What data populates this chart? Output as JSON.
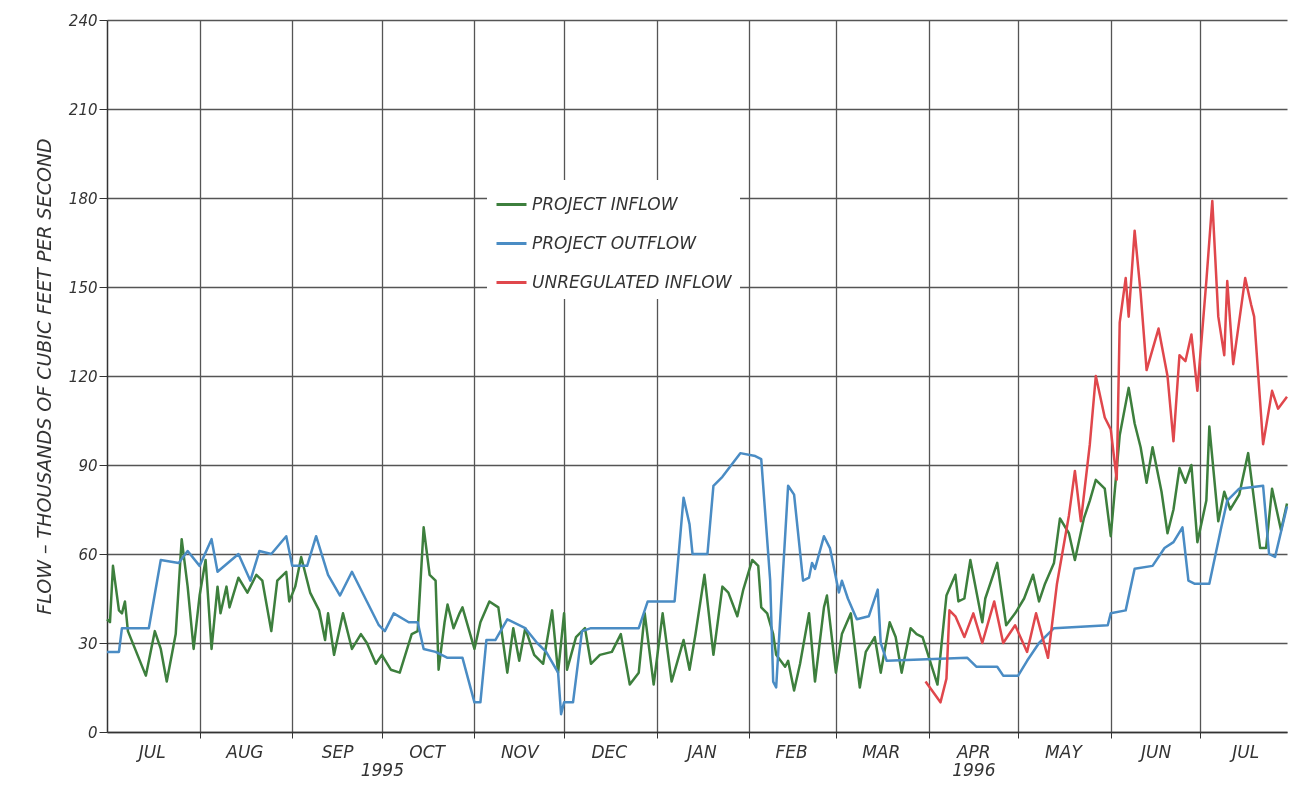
{
  "chart_data": {
    "type": "line",
    "ylabel": "FLOW – THOUSANDS OF CUBIC FEET PER SECOND",
    "xlim": [
      "1995-07-01",
      "1996-07-30"
    ],
    "xticks": [
      {
        "value": "1995-07-16",
        "label": "JUL"
      },
      {
        "value": "1995-08-01",
        "label": null
      },
      {
        "value": "1995-08-16",
        "label": "AUG"
      },
      {
        "value": "1995-09-01",
        "label": null
      },
      {
        "value": "1995-09-16",
        "label": "SEP"
      },
      {
        "value": "1995-10-01",
        "label": null
      },
      {
        "value": "1995-10-16",
        "label": "OCT"
      },
      {
        "value": "1995-11-01",
        "label": null
      },
      {
        "value": "1995-11-16",
        "label": "NOV"
      },
      {
        "value": "1995-12-01",
        "label": null
      },
      {
        "value": "1995-12-16",
        "label": "DEC"
      },
      {
        "value": "1996-01-01",
        "label": null
      },
      {
        "value": "1996-01-16",
        "label": "JAN"
      },
      {
        "value": "1996-02-01",
        "label": null
      },
      {
        "value": "1996-02-15",
        "label": "FEB"
      },
      {
        "value": "1996-03-01",
        "label": null
      },
      {
        "value": "1996-03-16",
        "label": "MAR"
      },
      {
        "value": "1996-04-01",
        "label": null
      },
      {
        "value": "1996-04-16",
        "label": "APR"
      },
      {
        "value": "1996-05-01",
        "label": null
      },
      {
        "value": "1996-05-16",
        "label": "MAY"
      },
      {
        "value": "1996-06-01",
        "label": null
      },
      {
        "value": "1996-06-16",
        "label": "JUN"
      },
      {
        "value": "1996-07-01",
        "label": null
      },
      {
        "value": "1996-07-16",
        "label": "JUL"
      }
    ],
    "x2lim": [
      "1995-07-01",
      "1996-07-30"
    ],
    "x2ticks": [
      {
        "value": "1995-10-01",
        "label": "1995"
      },
      {
        "value": "1996-04-16",
        "label": "1996"
      }
    ],
    "ylim": [
      0,
      240
    ],
    "yticks": [
      0,
      30,
      60,
      90,
      120,
      150,
      180,
      210,
      240
    ],
    "grid": true,
    "legend": "top",
    "series": [
      {
        "name": "PROJECT INFLOW",
        "color": "#3d7f3d",
        "x": [
          "1995-07-01",
          "1995-07-02",
          "1995-07-03",
          "1995-07-05",
          "1995-07-06",
          "1995-07-07",
          "1995-07-08",
          "1995-07-14",
          "1995-07-17",
          "1995-07-19",
          "1995-07-21",
          "1995-07-24",
          "1995-07-26",
          "1995-07-28",
          "1995-07-30",
          "1995-08-01",
          "1995-08-03",
          "1995-08-05",
          "1995-08-07",
          "1995-08-08",
          "1995-08-10",
          "1995-08-11",
          "1995-08-14",
          "1995-08-17",
          "1995-08-20",
          "1995-08-22",
          "1995-08-25",
          "1995-08-27",
          "1995-08-30",
          "1995-08-31",
          "1995-09-02",
          "1995-09-04",
          "1995-09-07",
          "1995-09-10",
          "1995-09-12",
          "1995-09-13",
          "1995-09-15",
          "1995-09-18",
          "1995-09-21",
          "1995-09-24",
          "1995-09-26",
          "1995-09-29",
          "1995-10-01",
          "1995-10-04",
          "1995-10-07",
          "1995-10-11",
          "1995-10-13",
          "1995-10-15",
          "1995-10-17",
          "1995-10-19",
          "1995-10-20",
          "1995-10-22",
          "1995-10-23",
          "1995-10-25",
          "1995-10-27",
          "1995-10-28",
          "1995-11-01",
          "1995-11-03",
          "1995-11-06",
          "1995-11-09",
          "1995-11-12",
          "1995-11-14",
          "1995-11-16",
          "1995-11-18",
          "1995-11-21",
          "1995-11-24",
          "1995-11-27",
          "1995-11-29",
          "1995-12-01",
          "1995-12-02",
          "1995-12-05",
          "1995-12-08",
          "1995-12-10",
          "1995-12-13",
          "1995-12-17",
          "1995-12-20",
          "1995-12-23",
          "1995-12-26",
          "1995-12-28",
          "1995-12-31",
          "1996-01-03",
          "1996-01-06",
          "1996-01-10",
          "1996-01-12",
          "1996-01-14",
          "1996-01-17",
          "1996-01-20",
          "1996-01-23",
          "1996-01-25",
          "1996-01-28",
          "1996-01-30",
          "1996-02-02",
          "1996-02-04",
          "1996-02-05",
          "1996-02-07",
          "1996-02-09",
          "1996-02-10",
          "1996-02-13",
          "1996-02-14",
          "1996-02-16",
          "1996-02-18",
          "1996-02-21",
          "1996-02-23",
          "1996-02-26",
          "1996-02-27",
          "1996-03-01",
          "1996-03-03",
          "1996-03-06",
          "1996-03-09",
          "1996-03-11",
          "1996-03-14",
          "1996-03-16",
          "1996-03-19",
          "1996-03-21",
          "1996-03-23",
          "1996-03-26",
          "1996-03-28",
          "1996-03-30",
          "1996-04-04",
          "1996-04-07",
          "1996-04-10",
          "1996-04-11",
          "1996-04-13",
          "1996-04-15",
          "1996-04-19",
          "1996-04-20",
          "1996-04-24",
          "1996-04-27",
          "1996-04-30",
          "1996-05-03",
          "1996-05-06",
          "1996-05-08",
          "1996-05-10",
          "1996-05-13",
          "1996-05-15",
          "1996-05-18",
          "1996-05-20",
          "1996-05-23",
          "1996-05-25",
          "1996-05-27",
          "1996-05-30",
          "1996-06-01",
          "1996-06-04",
          "1996-06-07",
          "1996-06-09",
          "1996-06-11",
          "1996-06-13",
          "1996-06-15",
          "1996-06-18",
          "1996-06-20",
          "1996-06-22",
          "1996-06-24",
          "1996-06-26",
          "1996-06-28",
          "1996-06-30",
          "1996-07-03",
          "1996-07-04",
          "1996-07-07",
          "1996-07-09",
          "1996-07-11",
          "1996-07-14",
          "1996-07-17",
          "1996-07-19",
          "1996-07-21",
          "1996-07-23",
          "1996-07-25",
          "1996-07-28",
          "1996-07-30"
        ],
        "values": [
          38,
          37,
          56,
          41,
          40,
          44,
          34,
          19,
          34,
          28,
          17,
          33,
          65,
          49,
          28,
          46,
          58,
          28,
          49,
          40,
          49,
          42,
          52,
          47,
          53,
          51,
          34,
          51,
          54,
          44,
          49,
          59,
          47,
          41,
          31,
          40,
          26,
          40,
          28,
          33,
          30,
          23,
          26,
          21,
          20,
          33,
          34,
          69,
          53,
          51,
          21,
          37,
          43,
          35,
          40,
          42,
          28,
          37,
          44,
          42,
          20,
          35,
          24,
          35,
          26,
          23,
          41,
          20,
          40,
          21,
          32,
          35,
          23,
          26,
          27,
          33,
          16,
          20,
          40,
          16,
          40,
          17,
          31,
          21,
          33,
          53,
          26,
          49,
          47,
          39,
          48,
          58,
          56,
          42,
          40,
          33,
          26,
          22,
          24,
          14,
          23,
          40,
          17,
          42,
          46,
          20,
          33,
          40,
          15,
          27,
          32,
          20,
          37,
          32,
          20,
          35,
          33,
          32,
          16,
          46,
          53,
          44,
          45,
          58,
          37,
          45,
          57,
          36,
          40,
          45,
          53,
          44,
          50,
          57,
          72,
          67,
          58,
          72,
          78,
          85,
          82,
          66,
          100,
          116,
          104,
          96,
          84,
          96,
          81,
          67,
          75,
          89,
          84,
          90,
          64,
          78,
          103,
          71,
          81,
          75,
          80,
          94,
          78,
          62,
          62,
          82,
          68,
          77
        ]
      },
      {
        "name": "PROJECT OUTFLOW",
        "color": "#4a8cc4",
        "x": [
          "1995-07-01",
          "1995-07-05",
          "1995-07-06",
          "1995-07-15",
          "1995-07-19",
          "1995-07-25",
          "1995-07-28",
          "1995-08-01",
          "1995-08-05",
          "1995-08-07",
          "1995-08-14",
          "1995-08-18",
          "1995-08-21",
          "1995-08-25",
          "1995-08-30",
          "1995-09-01",
          "1995-09-06",
          "1995-09-09",
          "1995-09-13",
          "1995-09-17",
          "1995-09-21",
          "1995-09-26",
          "1995-09-30",
          "1995-10-02",
          "1995-10-05",
          "1995-10-10",
          "1995-10-13",
          "1995-10-15",
          "1995-10-19",
          "1995-10-23",
          "1995-10-28",
          "1995-11-01",
          "1995-11-03",
          "1995-11-05",
          "1995-11-08",
          "1995-11-12",
          "1995-11-18",
          "1995-11-22",
          "1995-11-25",
          "1995-11-29",
          "1995-11-30",
          "1995-12-01",
          "1995-12-04",
          "1995-12-07",
          "1995-12-10",
          "1995-12-26",
          "1995-12-29",
          "1996-01-07",
          "1996-01-10",
          "1996-01-12",
          "1996-01-13",
          "1996-01-18",
          "1996-01-20",
          "1996-01-23",
          "1996-01-29",
          "1996-02-03",
          "1996-02-05",
          "1996-02-08",
          "1996-02-09",
          "1996-02-10",
          "1996-02-12",
          "1996-02-14",
          "1996-02-16",
          "1996-02-19",
          "1996-02-21",
          "1996-02-22",
          "1996-02-23",
          "1996-02-26",
          "1996-02-28",
          "1996-03-02",
          "1996-03-03",
          "1996-03-05",
          "1996-03-08",
          "1996-03-12",
          "1996-03-15",
          "1996-03-16",
          "1996-03-18",
          "1996-04-14",
          "1996-04-17",
          "1996-04-24",
          "1996-04-26",
          "1996-05-01",
          "1996-05-04",
          "1996-05-08",
          "1996-05-13",
          "1996-05-31",
          "1996-06-01",
          "1996-06-06",
          "1996-06-09",
          "1996-06-15",
          "1996-06-19",
          "1996-06-22",
          "1996-06-25",
          "1996-06-27",
          "1996-06-29",
          "1996-07-04",
          "1996-07-08",
          "1996-07-10",
          "1996-07-14",
          "1996-07-22",
          "1996-07-24",
          "1996-07-26",
          "1996-07-30"
        ],
        "values": [
          27,
          27,
          35,
          35,
          58,
          57,
          61,
          56,
          65,
          54,
          60,
          51,
          61,
          60,
          66,
          56,
          56,
          66,
          53,
          46,
          54,
          44,
          36,
          34,
          40,
          37,
          37,
          28,
          27,
          25,
          25,
          10,
          10,
          31,
          31,
          38,
          35,
          30,
          27,
          20,
          6,
          10,
          10,
          34,
          35,
          35,
          44,
          44,
          79,
          70,
          60,
          60,
          83,
          86,
          94,
          93,
          92,
          51,
          17,
          15,
          49,
          83,
          80,
          51,
          52,
          57,
          55,
          66,
          62,
          47,
          51,
          45,
          38,
          39,
          48,
          30,
          24,
          25,
          22,
          22,
          19,
          19,
          24,
          30,
          35,
          36,
          40,
          41,
          55,
          56,
          62,
          64,
          69,
          51,
          50,
          50,
          69,
          78,
          82,
          83,
          60,
          59,
          76
        ]
      },
      {
        "name": "UNREGULATED INFLOW",
        "color": "#e0474c",
        "x": [
          "1996-03-31",
          "1996-04-05",
          "1996-04-07",
          "1996-04-08",
          "1996-04-10",
          "1996-04-13",
          "1996-04-16",
          "1996-04-19",
          "1996-04-23",
          "1996-04-26",
          "1996-04-30",
          "1996-05-04",
          "1996-05-07",
          "1996-05-11",
          "1996-05-14",
          "1996-05-18",
          "1996-05-20",
          "1996-05-22",
          "1996-05-25",
          "1996-05-27",
          "1996-05-30",
          "1996-06-01",
          "1996-06-03",
          "1996-06-04",
          "1996-06-06",
          "1996-06-07",
          "1996-06-09",
          "1996-06-11",
          "1996-06-13",
          "1996-06-17",
          "1996-06-20",
          "1996-06-22",
          "1996-06-24",
          "1996-06-26",
          "1996-06-28",
          "1996-06-30",
          "1996-07-03",
          "1996-07-05",
          "1996-07-07",
          "1996-07-09",
          "1996-07-10",
          "1996-07-12",
          "1996-07-16",
          "1996-07-18",
          "1996-07-19",
          "1996-07-22",
          "1996-07-25",
          "1996-07-27",
          "1996-07-30"
        ],
        "values": [
          17,
          10,
          18,
          41,
          39,
          32,
          40,
          30,
          44,
          30,
          36,
          27,
          40,
          25,
          50,
          73,
          88,
          71,
          97,
          120,
          106,
          102,
          85,
          138,
          153,
          140,
          169,
          148,
          122,
          136,
          120,
          98,
          127,
          125,
          134,
          115,
          152,
          179,
          140,
          127,
          152,
          124,
          153,
          144,
          140,
          97,
          115,
          109,
          113
        ]
      }
    ]
  }
}
